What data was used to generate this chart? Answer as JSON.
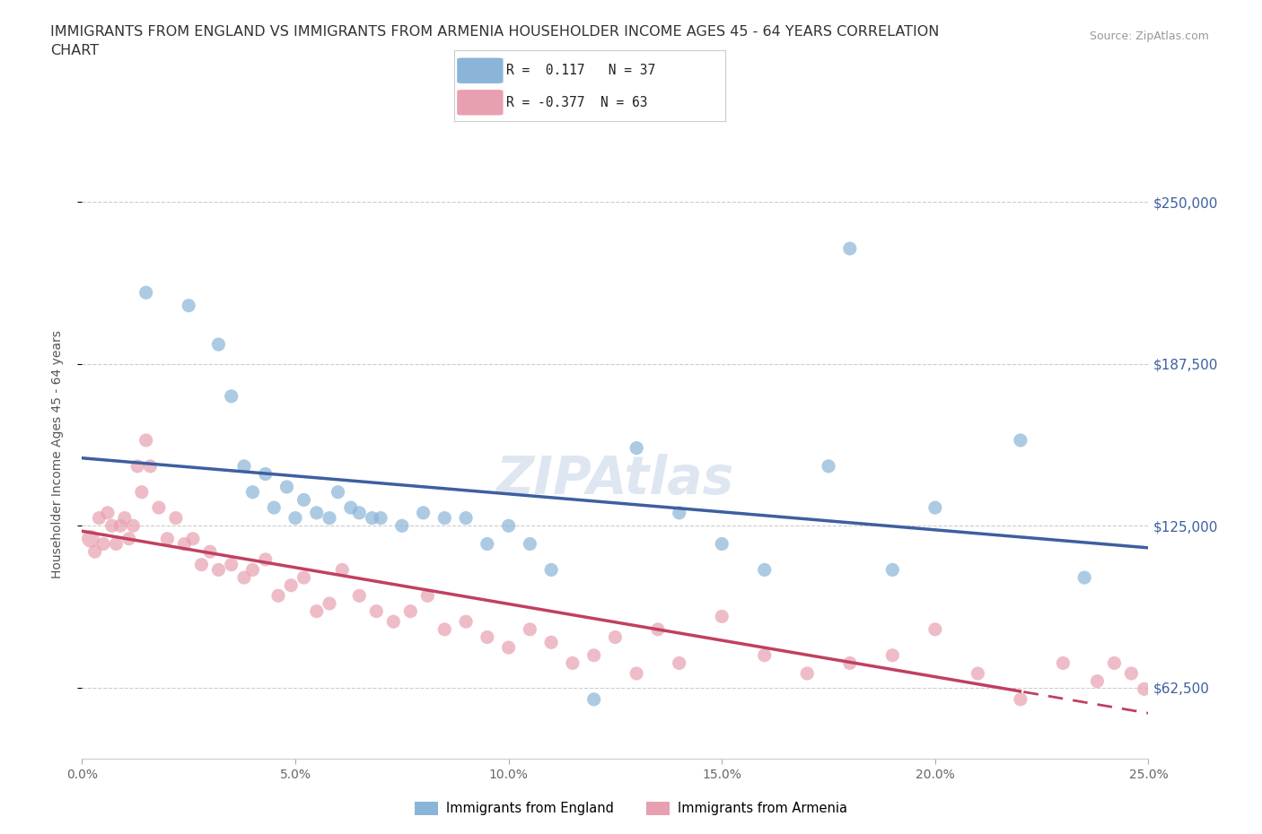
{
  "title_line1": "IMMIGRANTS FROM ENGLAND VS IMMIGRANTS FROM ARMENIA HOUSEHOLDER INCOME AGES 45 - 64 YEARS CORRELATION",
  "title_line2": "CHART",
  "source_text": "Source: ZipAtlas.com",
  "ylabel": "Householder Income Ages 45 - 64 years",
  "xlabel_ticks": [
    "0.0%",
    "5.0%",
    "10.0%",
    "15.0%",
    "20.0%",
    "25.0%"
  ],
  "xlabel_vals": [
    0.0,
    5.0,
    10.0,
    15.0,
    20.0,
    25.0
  ],
  "ytick_vals": [
    62500,
    125000,
    187500,
    250000
  ],
  "ytick_labels": [
    "$62,500",
    "$125,000",
    "$187,500",
    "$250,000"
  ],
  "xlim": [
    0.0,
    25.0
  ],
  "ylim": [
    35000,
    270000
  ],
  "england_R": 0.117,
  "england_N": 37,
  "armenia_R": -0.377,
  "armenia_N": 63,
  "england_color": "#8ab4d8",
  "armenia_color": "#e8a0b0",
  "england_line_color": "#3d5fa0",
  "armenia_line_color": "#c04060",
  "england_scatter_x": [
    1.5,
    2.5,
    3.2,
    3.5,
    3.8,
    4.0,
    4.3,
    4.5,
    4.8,
    5.0,
    5.2,
    5.5,
    5.8,
    6.0,
    6.3,
    6.5,
    6.8,
    7.0,
    7.5,
    8.0,
    8.5,
    9.0,
    9.5,
    10.0,
    10.5,
    11.0,
    12.0,
    13.0,
    14.0,
    15.0,
    16.0,
    17.5,
    18.0,
    19.0,
    20.0,
    22.0,
    23.5
  ],
  "england_scatter_y": [
    215000,
    210000,
    195000,
    175000,
    148000,
    138000,
    145000,
    132000,
    140000,
    128000,
    135000,
    130000,
    128000,
    138000,
    132000,
    130000,
    128000,
    128000,
    125000,
    130000,
    128000,
    128000,
    118000,
    125000,
    118000,
    108000,
    58000,
    155000,
    130000,
    118000,
    108000,
    148000,
    232000,
    108000,
    132000,
    158000,
    105000
  ],
  "armenia_scatter_x": [
    0.2,
    0.3,
    0.4,
    0.5,
    0.6,
    0.7,
    0.8,
    0.9,
    1.0,
    1.1,
    1.2,
    1.3,
    1.4,
    1.5,
    1.6,
    1.8,
    2.0,
    2.2,
    2.4,
    2.6,
    2.8,
    3.0,
    3.2,
    3.5,
    3.8,
    4.0,
    4.3,
    4.6,
    4.9,
    5.2,
    5.5,
    5.8,
    6.1,
    6.5,
    6.9,
    7.3,
    7.7,
    8.1,
    8.5,
    9.0,
    9.5,
    10.0,
    10.5,
    11.0,
    11.5,
    12.0,
    12.5,
    13.0,
    13.5,
    14.0,
    15.0,
    16.0,
    17.0,
    18.0,
    19.0,
    20.0,
    21.0,
    22.0,
    23.0,
    23.8,
    24.2,
    24.6,
    24.9
  ],
  "armenia_scatter_y": [
    120000,
    115000,
    128000,
    118000,
    130000,
    125000,
    118000,
    125000,
    128000,
    120000,
    125000,
    148000,
    138000,
    158000,
    148000,
    132000,
    120000,
    128000,
    118000,
    120000,
    110000,
    115000,
    108000,
    110000,
    105000,
    108000,
    112000,
    98000,
    102000,
    105000,
    92000,
    95000,
    108000,
    98000,
    92000,
    88000,
    92000,
    98000,
    85000,
    88000,
    82000,
    78000,
    85000,
    80000,
    72000,
    75000,
    82000,
    68000,
    85000,
    72000,
    90000,
    75000,
    68000,
    72000,
    75000,
    85000,
    68000,
    58000,
    72000,
    65000,
    72000,
    68000,
    62000
  ],
  "armenia_scatter_size_large": 200,
  "armenia_large_x": 0.2,
  "armenia_large_y": 115000,
  "watermark_text": "ZIPAtlas",
  "grid_color": "#cccccc",
  "background_color": "#ffffff",
  "legend_england_text": "R =  0.117   N = 37",
  "legend_armenia_text": "R = -0.377  N = 63",
  "bottom_legend_england": "Immigrants from England",
  "bottom_legend_armenia": "Immigrants from Armenia"
}
